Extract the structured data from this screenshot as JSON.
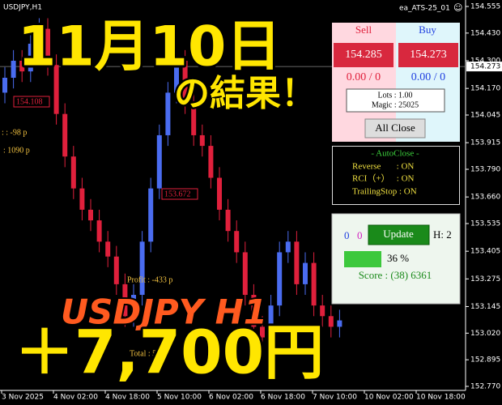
{
  "window": {
    "symbol": "USDJPY,H1",
    "expert": "ea_ATS-25_01",
    "smiley": "☺"
  },
  "chart_data": {
    "type": "candlestick",
    "ylim": [
      152.77,
      154.555
    ],
    "yticks": [
      {
        "value": 154.555,
        "label": "154.555"
      },
      {
        "value": 154.43,
        "label": "154.430"
      },
      {
        "value": 154.3,
        "label": "154.300"
      },
      {
        "value": 154.17,
        "label": "154.170"
      },
      {
        "value": 154.045,
        "label": "154.045"
      },
      {
        "value": 153.915,
        "label": "153.915"
      },
      {
        "value": 153.79,
        "label": "153.790"
      },
      {
        "value": 153.66,
        "label": "153.660"
      },
      {
        "value": 153.535,
        "label": "153.535"
      },
      {
        "value": 153.405,
        "label": "153.405"
      },
      {
        "value": 153.275,
        "label": "153.275"
      },
      {
        "value": 153.145,
        "label": "153.145"
      },
      {
        "value": 153.02,
        "label": "153.020"
      },
      {
        "value": 152.895,
        "label": "152.895"
      },
      {
        "value": 152.77,
        "label": "152.770"
      }
    ],
    "current_price": {
      "value": 154.273,
      "label": "154.273"
    },
    "time_labels": [
      "3 Nov 2025",
      "4 Nov 02:00",
      "4 Nov 18:00",
      "5 Nov 10:00",
      "6 Nov 02:00",
      "6 Nov 18:00",
      "7 Nov 10:00",
      "10 Nov 02:00",
      "10 Nov 18:00"
    ],
    "candles": [
      {
        "o": 154.15,
        "h": 154.27,
        "l": 154.1,
        "c": 154.22
      },
      {
        "o": 154.22,
        "h": 154.35,
        "l": 154.17,
        "c": 154.3
      },
      {
        "o": 154.3,
        "h": 154.35,
        "l": 154.2,
        "c": 154.25
      },
      {
        "o": 154.25,
        "h": 154.43,
        "l": 154.2,
        "c": 154.38
      },
      {
        "o": 154.38,
        "h": 154.5,
        "l": 154.33,
        "c": 154.45
      },
      {
        "o": 154.45,
        "h": 154.5,
        "l": 154.23,
        "c": 154.28
      },
      {
        "o": 154.28,
        "h": 154.33,
        "l": 154.0,
        "c": 154.05
      },
      {
        "o": 154.05,
        "h": 154.1,
        "l": 153.8,
        "c": 153.85
      },
      {
        "o": 153.85,
        "h": 153.9,
        "l": 153.65,
        "c": 153.7
      },
      {
        "o": 153.7,
        "h": 153.75,
        "l": 153.55,
        "c": 153.6
      },
      {
        "o": 153.6,
        "h": 153.65,
        "l": 153.5,
        "c": 153.55
      },
      {
        "o": 153.55,
        "h": 153.6,
        "l": 153.4,
        "c": 153.45
      },
      {
        "o": 153.45,
        "h": 153.5,
        "l": 153.33,
        "c": 153.38
      },
      {
        "o": 153.38,
        "h": 153.43,
        "l": 153.2,
        "c": 153.25
      },
      {
        "o": 153.25,
        "h": 153.3,
        "l": 153.05,
        "c": 153.1
      },
      {
        "o": 153.1,
        "h": 153.25,
        "l": 153.05,
        "c": 153.2
      },
      {
        "o": 153.2,
        "h": 153.5,
        "l": 153.15,
        "c": 153.45
      },
      {
        "o": 153.45,
        "h": 153.75,
        "l": 153.4,
        "c": 153.7
      },
      {
        "o": 153.7,
        "h": 154.0,
        "l": 153.65,
        "c": 153.95
      },
      {
        "o": 153.95,
        "h": 154.2,
        "l": 153.9,
        "c": 154.15
      },
      {
        "o": 154.15,
        "h": 154.35,
        "l": 154.1,
        "c": 154.3
      },
      {
        "o": 154.3,
        "h": 154.35,
        "l": 154.05,
        "c": 154.1
      },
      {
        "o": 154.1,
        "h": 154.15,
        "l": 153.9,
        "c": 153.95
      },
      {
        "o": 153.95,
        "h": 154.0,
        "l": 153.85,
        "c": 153.9
      },
      {
        "o": 153.9,
        "h": 153.95,
        "l": 153.7,
        "c": 153.75
      },
      {
        "o": 153.75,
        "h": 153.8,
        "l": 153.55,
        "c": 153.6
      },
      {
        "o": 153.6,
        "h": 153.65,
        "l": 153.45,
        "c": 153.5
      },
      {
        "o": 153.5,
        "h": 153.55,
        "l": 153.35,
        "c": 153.4
      },
      {
        "o": 153.4,
        "h": 153.45,
        "l": 153.15,
        "c": 153.2
      },
      {
        "o": 153.2,
        "h": 153.25,
        "l": 153.0,
        "c": 153.05
      },
      {
        "o": 153.05,
        "h": 153.1,
        "l": 152.95,
        "c": 153.0
      },
      {
        "o": 153.0,
        "h": 153.2,
        "l": 152.95,
        "c": 153.15
      },
      {
        "o": 153.15,
        "h": 153.45,
        "l": 153.1,
        "c": 153.4
      },
      {
        "o": 153.4,
        "h": 153.5,
        "l": 153.35,
        "c": 153.45
      },
      {
        "o": 153.45,
        "h": 153.5,
        "l": 153.2,
        "c": 153.25
      },
      {
        "o": 153.25,
        "h": 153.4,
        "l": 153.2,
        "c": 153.35
      },
      {
        "o": 153.35,
        "h": 153.4,
        "l": 153.1,
        "c": 153.15
      },
      {
        "o": 153.15,
        "h": 153.2,
        "l": 153.05,
        "c": 153.1
      },
      {
        "o": 153.1,
        "h": 153.15,
        "l": 153.0,
        "c": 153.05
      },
      {
        "o": 153.05,
        "h": 153.13,
        "l": 153.0,
        "c": 153.08
      }
    ],
    "up_color": "#4a6cf0",
    "down_color": "#e0203c"
  },
  "chart_labels": {
    "box1": "154.108",
    "box2": "153.672",
    "line1": ": : -98 p",
    "line2": ": 1090 p",
    "profit": "Profit : -433 p",
    "total": "Total : 57 p"
  },
  "overlay": {
    "date": "11月10日",
    "result": "の結果！",
    "pair": "USDJPY H1",
    "gain": "＋7,700円"
  },
  "panel": {
    "sell": "Sell",
    "buy": "Buy",
    "sell_price": "154.285",
    "buy_price": "154.273",
    "sell_pos": "0.00 / 0",
    "buy_pos": "0.00 / 0",
    "lots": "Lots : 1.00",
    "magic": "Magic : 25025",
    "all_close": "All Close",
    "autoclose_title": "- AutoClose -",
    "reverse": "Reverse       : ON",
    "rci": "RCI（+）   : ON",
    "trailing": "TrailingStop : ON",
    "count_blue": "0",
    "count_magenta": "0",
    "update": "Update",
    "h": "H: 2",
    "progress": "36 %",
    "score": "Score : (38) 6361"
  }
}
